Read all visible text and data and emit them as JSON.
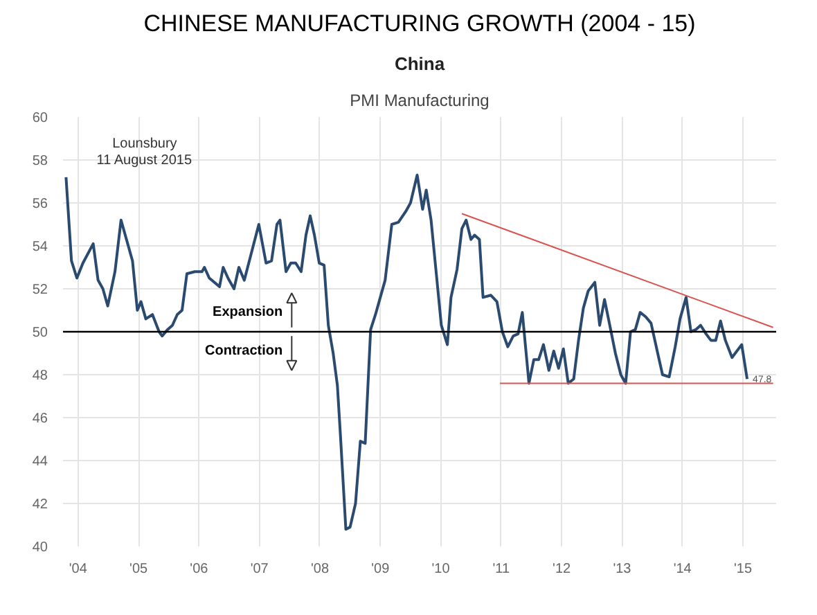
{
  "chart_data": {
    "type": "line",
    "title": "CHINESE MANUFACTURING GROWTH (2004 - 15)",
    "subtitle": "China",
    "xlabel": "PMI Manufacturing",
    "xlim": [
      2003.75,
      2015.55
    ],
    "ylim": [
      40,
      60
    ],
    "xticks": [
      {
        "value": 2004,
        "label": "'04"
      },
      {
        "value": 2005,
        "label": "'05"
      },
      {
        "value": 2006,
        "label": "'06"
      },
      {
        "value": 2007,
        "label": "'07"
      },
      {
        "value": 2008,
        "label": "'08"
      },
      {
        "value": 2009,
        "label": "'09"
      },
      {
        "value": 2010,
        "label": "'10"
      },
      {
        "value": 2011,
        "label": "'11"
      },
      {
        "value": 2012,
        "label": "'12"
      },
      {
        "value": 2013,
        "label": "'13"
      },
      {
        "value": 2014,
        "label": "'14"
      },
      {
        "value": 2015,
        "label": "'15"
      }
    ],
    "yticks": [
      40,
      42,
      44,
      46,
      48,
      50,
      52,
      54,
      56,
      58,
      60
    ],
    "grid": true,
    "line_style": "solid",
    "marker": "none",
    "series": [
      {
        "color": "#2b4a6f",
        "x": [
          2003.8,
          2003.89,
          2003.98,
          2004.08,
          2004.25,
          2004.33,
          2004.41,
          2004.49,
          2004.61,
          2004.71,
          2004.9,
          2004.98,
          2005.04,
          2005.12,
          2005.23,
          2005.34,
          2005.39,
          2005.48,
          2005.56,
          2005.64,
          2005.72,
          2005.8,
          2005.93,
          2006.05,
          2006.09,
          2006.17,
          2006.34,
          2006.4,
          2006.48,
          2006.58,
          2006.66,
          2006.75,
          2006.99,
          2007.11,
          2007.2,
          2007.29,
          2007.34,
          2007.44,
          2007.52,
          2007.6,
          2007.69,
          2007.77,
          2007.84,
          2007.91,
          2007.99,
          2008.07,
          2008.14,
          2008.22,
          2008.29,
          2008.34,
          2008.43,
          2008.5,
          2008.59,
          2008.67,
          2008.75,
          2008.84,
          2008.92,
          2009.0,
          2009.08,
          2009.19,
          2009.3,
          2009.42,
          2009.5,
          2009.61,
          2009.7,
          2009.76,
          2009.84,
          2009.92,
          2010.01,
          2010.11,
          2010.17,
          2010.27,
          2010.35,
          2010.42,
          2010.5,
          2010.56,
          2010.64,
          2010.7,
          2010.83,
          2010.93,
          2011.02,
          2011.11,
          2011.2,
          2011.28,
          2011.35,
          2011.46,
          2011.54,
          2011.62,
          2011.7,
          2011.79,
          2011.87,
          2011.95,
          2012.03,
          2012.11,
          2012.2,
          2012.28,
          2012.36,
          2012.44,
          2012.55,
          2012.63,
          2012.71,
          2012.79,
          2012.89,
          2012.98,
          2013.06,
          2013.14,
          2013.22,
          2013.3,
          2013.39,
          2013.48,
          2013.59,
          2013.67,
          2013.78,
          2013.88,
          2013.96,
          2014.06,
          2014.14,
          2014.22,
          2014.3,
          2014.39,
          2014.47,
          2014.55,
          2014.63,
          2014.71,
          2014.82,
          2014.98,
          2015.07
        ],
        "values": [
          57.2,
          53.3,
          52.5,
          53.2,
          54.1,
          52.4,
          52.0,
          51.2,
          52.8,
          55.2,
          53.3,
          51.0,
          51.4,
          50.6,
          50.8,
          50.0,
          49.8,
          50.1,
          50.3,
          50.8,
          51.0,
          52.7,
          52.8,
          52.8,
          53.0,
          52.5,
          52.1,
          53.0,
          52.5,
          52.0,
          53.0,
          52.4,
          55.0,
          53.2,
          53.3,
          55.0,
          55.2,
          52.8,
          53.2,
          53.2,
          52.8,
          54.5,
          55.4,
          54.5,
          53.2,
          53.1,
          50.3,
          49.0,
          47.5,
          45.2,
          40.8,
          40.9,
          42.0,
          44.9,
          44.8,
          50.1,
          50.8,
          51.6,
          52.4,
          55.0,
          55.1,
          55.6,
          56.0,
          57.3,
          55.7,
          56.6,
          55.2,
          52.9,
          50.3,
          49.4,
          51.6,
          52.9,
          54.8,
          55.2,
          54.3,
          54.5,
          54.3,
          51.6,
          51.7,
          51.4,
          50.0,
          49.3,
          49.8,
          49.9,
          50.9,
          47.6,
          48.7,
          48.7,
          49.4,
          48.2,
          49.1,
          48.3,
          49.2,
          47.6,
          47.8,
          49.6,
          51.1,
          51.9,
          52.3,
          50.3,
          51.5,
          50.4,
          49.0,
          48.0,
          47.6,
          50.0,
          50.1,
          50.9,
          50.7,
          50.4,
          49.0,
          48.0,
          47.9,
          49.3,
          50.6,
          51.6,
          50.0,
          50.1,
          50.3,
          49.9,
          49.6,
          49.6,
          50.5,
          49.6,
          48.8,
          49.4,
          47.8
        ]
      },
      {
        "color": "#d9534f",
        "x": [
          2010.35,
          2015.5
        ],
        "values": [
          55.5,
          50.2
        ]
      },
      {
        "color": "#d9534f",
        "x": [
          2010.98,
          2015.5
        ],
        "values": [
          47.6,
          47.6
        ]
      }
    ],
    "ref_lines": [
      {
        "axis": "y",
        "value": 50,
        "color": "#000000"
      }
    ],
    "annotations": [
      "Expansion",
      "Contraction",
      {
        "text": "47.8",
        "x": 2015.07,
        "y": 47.8
      },
      "Lounsbury",
      "11 August 2015"
    ]
  }
}
